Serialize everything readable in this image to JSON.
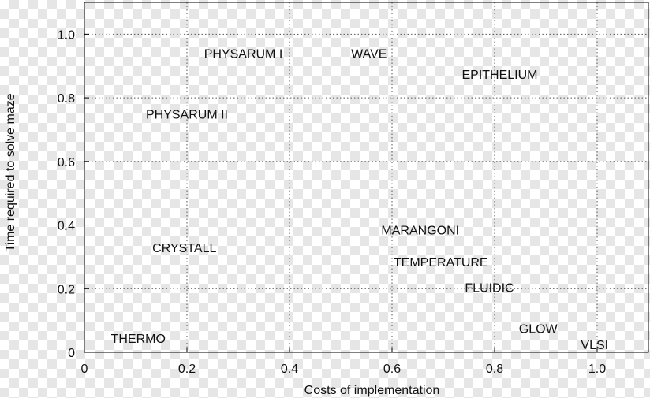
{
  "chart_data": {
    "type": "scatter",
    "title": "",
    "xlabel": "Costs of implementation",
    "ylabel": "Time required to solve maze",
    "xlim": [
      0,
      1.1
    ],
    "ylim": [
      0,
      1.1
    ],
    "xticks": [
      0,
      0.2,
      0.4,
      0.6,
      0.8,
      1.0
    ],
    "xtick_labels": [
      "0",
      "0.2",
      "0.4",
      "0.6",
      "0.8",
      "1.0"
    ],
    "yticks": [
      0,
      0.2,
      0.4,
      0.6,
      0.8,
      1.0
    ],
    "ytick_labels": [
      "0",
      "0.2",
      "0.4",
      "0.6",
      "0.8",
      "1.0"
    ],
    "grid": true,
    "points": [
      {
        "label": "PHYSARUM I",
        "x": 0.31,
        "y": 0.94
      },
      {
        "label": "WAVE",
        "x": 0.555,
        "y": 0.94
      },
      {
        "label": "EPITHELIUM",
        "x": 0.81,
        "y": 0.875
      },
      {
        "label": "PHYSARUM II",
        "x": 0.2,
        "y": 0.75
      },
      {
        "label": "MARANGONI",
        "x": 0.655,
        "y": 0.385
      },
      {
        "label": "CRYSTALL",
        "x": 0.195,
        "y": 0.33
      },
      {
        "label": "TEMPERATURE",
        "x": 0.695,
        "y": 0.285
      },
      {
        "label": "FLUIDIC",
        "x": 0.79,
        "y": 0.205
      },
      {
        "label": "THERMO",
        "x": 0.105,
        "y": 0.045
      },
      {
        "label": "GLOW",
        "x": 0.885,
        "y": 0.075
      },
      {
        "label": "VLSI",
        "x": 0.995,
        "y": 0.025
      }
    ]
  }
}
